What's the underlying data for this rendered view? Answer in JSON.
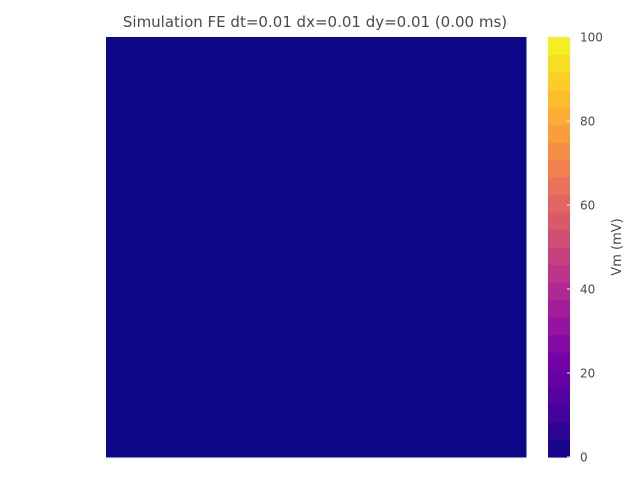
{
  "chart_data": {
    "type": "heatmap",
    "title": "Simulation FE dt=0.01 dx=0.01 dy=0.01 (0.00 ms)",
    "field": {
      "rows": 1,
      "cols": 1,
      "values": [
        [
          0
        ]
      ]
    },
    "colorbar": {
      "label": "Vm (mV)",
      "range": [
        0,
        100
      ],
      "levels": 24,
      "ticks": [
        0,
        20,
        40,
        60,
        80,
        100
      ],
      "tick_labels": [
        "0",
        "20",
        "40",
        "60",
        "80",
        "100"
      ],
      "colormap": "plasma"
    },
    "colormap_stops": [
      "#0d0887",
      "#46039f",
      "#7201a8",
      "#9c179e",
      "#bd3786",
      "#d8576b",
      "#ed7953",
      "#fb9f3a",
      "#fdca26",
      "#f0f921"
    ],
    "grid": false,
    "axes_visible": false,
    "tick_color": "#f3f3f3",
    "text_color": "#4a4a4a"
  }
}
